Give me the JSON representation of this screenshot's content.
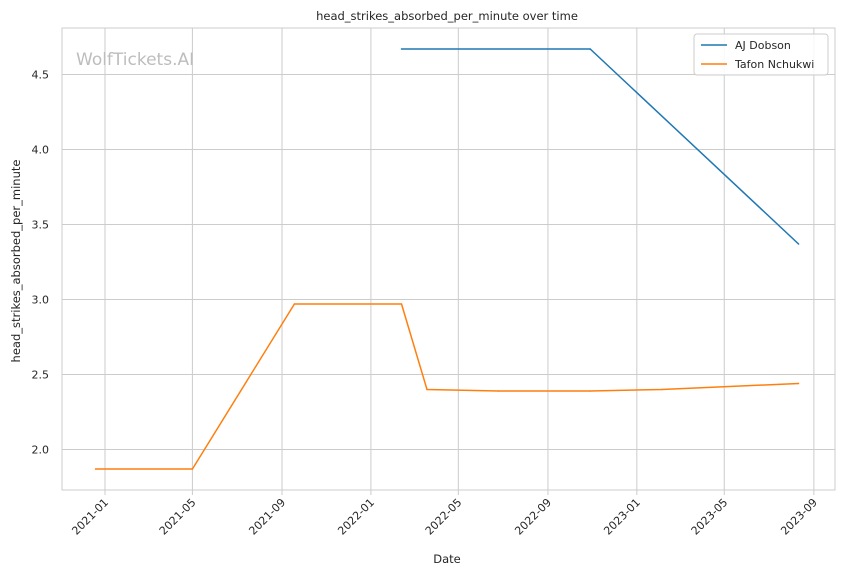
{
  "chart_data": {
    "type": "line",
    "title": "head_strikes_absorbed_per_minute over time",
    "xlabel": "Date",
    "ylabel": "head_strikes_absorbed_per_minute",
    "watermark": "WolfTickets.AI",
    "x_axis": "date",
    "xlim": [
      "2020-11-03",
      "2023-09-30"
    ],
    "ylim": [
      1.73,
      4.81
    ],
    "x_ticks": [
      {
        "date": "2021-01-01",
        "label": "2021-01"
      },
      {
        "date": "2021-05-01",
        "label": "2021-05"
      },
      {
        "date": "2021-09-01",
        "label": "2021-09"
      },
      {
        "date": "2022-01-01",
        "label": "2022-01"
      },
      {
        "date": "2022-05-01",
        "label": "2022-05"
      },
      {
        "date": "2022-09-01",
        "label": "2022-09"
      },
      {
        "date": "2023-01-01",
        "label": "2023-01"
      },
      {
        "date": "2023-05-01",
        "label": "2023-05"
      },
      {
        "date": "2023-09-01",
        "label": "2023-09"
      }
    ],
    "y_ticks": [
      {
        "value": 2.0,
        "label": "2.0"
      },
      {
        "value": 2.5,
        "label": "2.5"
      },
      {
        "value": 3.0,
        "label": "3.0"
      },
      {
        "value": 3.5,
        "label": "3.5"
      },
      {
        "value": 4.0,
        "label": "4.0"
      },
      {
        "value": 4.5,
        "label": "4.5"
      }
    ],
    "grid": true,
    "legend_position": "top-right",
    "series": [
      {
        "name": "AJ Dobson",
        "color": "#1f77b4",
        "points": [
          {
            "x": "2022-02-12",
            "y": 4.67
          },
          {
            "x": "2022-10-29",
            "y": 4.67
          },
          {
            "x": "2023-08-11",
            "y": 3.37
          }
        ]
      },
      {
        "name": "Tafon Nchukwi",
        "color": "#ff7f0e",
        "points": [
          {
            "x": "2020-12-19",
            "y": 1.87
          },
          {
            "x": "2021-05-01",
            "y": 1.87
          },
          {
            "x": "2021-09-18",
            "y": 2.97
          },
          {
            "x": "2022-02-12",
            "y": 2.97
          },
          {
            "x": "2022-03-19",
            "y": 2.4
          },
          {
            "x": "2022-06-25",
            "y": 2.39
          },
          {
            "x": "2022-10-29",
            "y": 2.39
          },
          {
            "x": "2023-02-04",
            "y": 2.4
          },
          {
            "x": "2023-08-11",
            "y": 2.44
          }
        ]
      }
    ]
  }
}
